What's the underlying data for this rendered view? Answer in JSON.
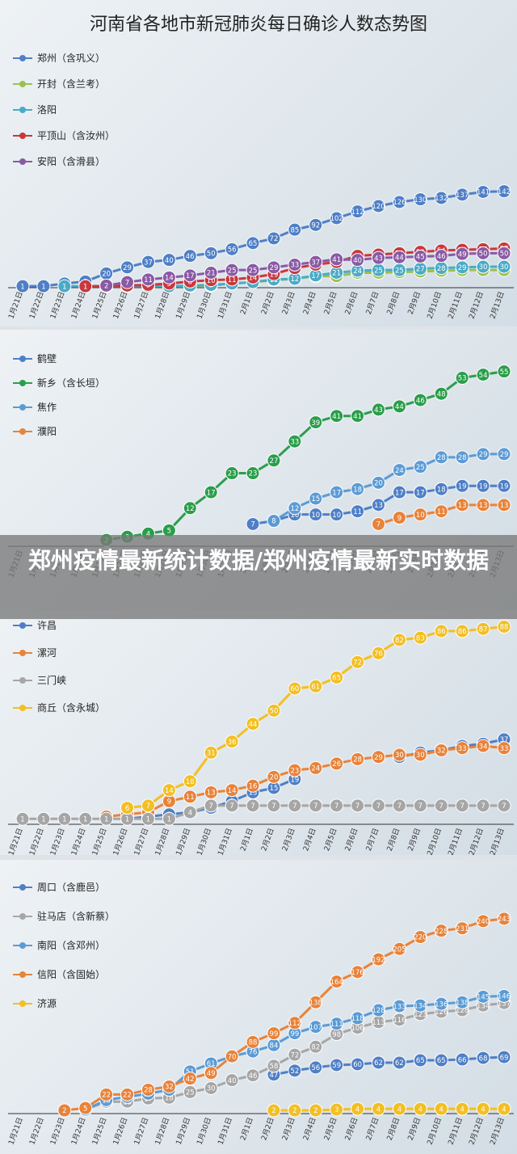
{
  "page_title": "河南省各地市新冠肺炎每日确诊人数态势图",
  "overlay_title": "郑州疫情最新统计数据/郑州疫情最新实时数据",
  "chart_data": [
    {
      "type": "line",
      "x": [
        "1月21日",
        "1月22日",
        "1月23日",
        "1月24日",
        "1月25日",
        "1月26日",
        "1月27日",
        "1月28日",
        "1月29日",
        "1月30日",
        "1月31日",
        "2月1日",
        "2月2日",
        "2月3日",
        "2月4日",
        "2月5日",
        "2月6日",
        "2月7日",
        "2月8日",
        "2月9日",
        "2月10日",
        "2月11日",
        "2月12日",
        "2月13日"
      ],
      "series": [
        {
          "name": "郑州（含巩义）",
          "color": "#4f7fc6",
          "values": [
            1,
            1,
            5,
            8,
            20,
            29,
            37,
            40,
            46,
            50,
            56,
            65,
            72,
            85,
            92,
            102,
            112,
            120,
            126,
            130,
            132,
            137,
            141,
            142
          ]
        },
        {
          "name": "开封（含兰考）",
          "color": "#9cc04e",
          "values": [
            null,
            null,
            null,
            null,
            null,
            null,
            null,
            null,
            1,
            2,
            5,
            7,
            10,
            12,
            16,
            16,
            21,
            21,
            22,
            23,
            24,
            25,
            25,
            25
          ]
        },
        {
          "name": "洛阳",
          "color": "#4aabc7",
          "values": [
            null,
            null,
            1,
            1,
            1,
            1,
            1,
            1,
            2,
            3,
            5,
            7,
            11,
            12,
            17,
            21,
            24,
            25,
            25,
            27,
            28,
            29,
            30,
            30
          ]
        },
        {
          "name": "平顶山（含汝州）",
          "color": "#c8383d",
          "values": [
            null,
            null,
            null,
            1,
            1,
            2,
            3,
            5,
            8,
            10,
            11,
            14,
            19,
            28,
            33,
            37,
            46,
            48,
            50,
            52,
            54,
            55,
            56,
            57
          ]
        },
        {
          "name": "安阳（含滑县）",
          "color": "#8a5aa5",
          "values": [
            null,
            null,
            null,
            null,
            2,
            7,
            11,
            14,
            17,
            21,
            25,
            25,
            29,
            33,
            37,
            41,
            40,
            43,
            44,
            45,
            46,
            49,
            50,
            50
          ]
        }
      ],
      "ylim": [
        0,
        150
      ]
    },
    {
      "type": "line",
      "x": [
        "1月21日",
        "1月22日",
        "1月23日",
        "1月24日",
        "1月25日",
        "1月26日",
        "1月27日",
        "1月28日",
        "1月29日",
        "1月30日",
        "1月31日",
        "2月1日",
        "2月2日",
        "2月3日",
        "2月4日",
        "2月5日",
        "2月6日",
        "2月7日",
        "2月8日",
        "2月9日",
        "2月10日",
        "2月11日",
        "2月12日",
        "2月13日"
      ],
      "series": [
        {
          "name": "鹤壁",
          "color": "#4f7fc6",
          "values": [
            null,
            null,
            null,
            null,
            null,
            null,
            null,
            null,
            null,
            null,
            null,
            7,
            8,
            10,
            10,
            10,
            11,
            13,
            17,
            17,
            18,
            19,
            19,
            19
          ]
        },
        {
          "name": "新乡（含长垣）",
          "color": "#2a9e4b",
          "values": [
            null,
            null,
            null,
            null,
            2,
            3,
            4,
            5,
            12,
            17,
            23,
            23,
            27,
            33,
            39,
            41,
            41,
            43,
            44,
            46,
            48,
            53,
            54,
            55
          ]
        },
        {
          "name": "焦作",
          "color": "#5b9bd5",
          "values": [
            null,
            null,
            null,
            null,
            null,
            null,
            null,
            null,
            null,
            null,
            null,
            null,
            8,
            12,
            15,
            17,
            18,
            20,
            24,
            25,
            28,
            28,
            29,
            29
          ]
        },
        {
          "name": "濮阳",
          "color": "#e8833a",
          "values": [
            null,
            null,
            null,
            null,
            null,
            null,
            null,
            null,
            null,
            null,
            null,
            null,
            null,
            null,
            null,
            null,
            null,
            7,
            9,
            10,
            11,
            13,
            13,
            13
          ]
        }
      ],
      "ylim": [
        0,
        60
      ]
    },
    {
      "type": "line",
      "x": [
        "1月21日",
        "1月22日",
        "1月23日",
        "1月24日",
        "1月25日",
        "1月26日",
        "1月27日",
        "1月28日",
        "1月29日",
        "1月30日",
        "1月31日",
        "2月1日",
        "2月2日",
        "2月3日",
        "2月4日",
        "2月5日",
        "2月6日",
        "2月7日",
        "2月8日",
        "2月9日",
        "2月10日",
        "2月11日",
        "2月12日",
        "2月13日"
      ],
      "series": [
        {
          "name": "许昌",
          "color": "#4f7fc6",
          "values": [
            null,
            null,
            null,
            null,
            null,
            1,
            2,
            3,
            4,
            6,
            9,
            13,
            15,
            19,
            null,
            null,
            null,
            null,
            29,
            31,
            32,
            34,
            35,
            37
          ]
        },
        {
          "name": "漯河",
          "color": "#e8833a",
          "values": [
            null,
            null,
            null,
            null,
            2,
            3,
            4,
            9,
            11,
            13,
            14,
            16,
            20,
            23,
            24,
            26,
            28,
            29,
            30,
            30,
            32,
            33,
            34,
            33
          ]
        },
        {
          "name": "三门峡",
          "color": "#a6a6a6",
          "values": [
            1,
            1,
            1,
            1,
            1,
            1,
            1,
            1,
            4,
            7,
            7,
            7,
            7,
            7,
            7,
            7,
            7,
            7,
            7,
            7,
            7,
            7,
            7,
            7
          ]
        },
        {
          "name": "商丘（含永城）",
          "color": "#f2bf24",
          "values": [
            null,
            null,
            null,
            null,
            null,
            6,
            7,
            14,
            18,
            31,
            36,
            44,
            50,
            60,
            61,
            65,
            72,
            76,
            82,
            83,
            86,
            86,
            87,
            88
          ]
        }
      ],
      "ylim": [
        0,
        90
      ]
    },
    {
      "type": "line",
      "x": [
        "1月21日",
        "1月22日",
        "1月23日",
        "1月24日",
        "1月25日",
        "1月26日",
        "1月27日",
        "1月28日",
        "1月29日",
        "1月30日",
        "1月31日",
        "2月1日",
        "2月2日",
        "2月3日",
        "2月4日",
        "2月5日",
        "2月6日",
        "2月7日",
        "2月8日",
        "2月9日",
        "2月10日",
        "2月11日",
        "2月12日",
        "2月13日"
      ],
      "series": [
        {
          "name": "周口（含鹿邑）",
          "color": "#4f7fc6",
          "values": [
            null,
            null,
            null,
            null,
            null,
            null,
            null,
            null,
            null,
            null,
            null,
            null,
            47,
            52,
            56,
            59,
            60,
            62,
            62,
            65,
            65,
            66,
            68,
            69
          ]
        },
        {
          "name": "驻马店（含新蔡）",
          "color": "#a6a6a6",
          "values": [
            null,
            null,
            null,
            3,
            13,
            13,
            17,
            18,
            25,
            30,
            40,
            46,
            58,
            72,
            82,
            98,
            106,
            113,
            116,
            123,
            126,
            128,
            134,
            137
          ]
        },
        {
          "name": "南阳（含邓州）",
          "color": "#5b9bd5",
          "values": [
            null,
            null,
            null,
            3,
            15,
            19,
            23,
            28,
            51,
            61,
            70,
            76,
            84,
            99,
            107,
            111,
            118,
            128,
            133,
            134,
            136,
            138,
            145,
            146
          ]
        },
        {
          "name": "信阳（含固始）",
          "color": "#e8833a",
          "values": [
            null,
            null,
            2,
            5,
            22,
            22,
            28,
            32,
            42,
            49,
            70,
            88,
            99,
            112,
            138,
            164,
            176,
            192,
            205,
            220,
            228,
            231,
            240,
            243
          ]
        },
        {
          "name": "济源",
          "color": "#f2bf24",
          "values": [
            null,
            null,
            null,
            null,
            null,
            null,
            null,
            null,
            null,
            null,
            null,
            null,
            2,
            2,
            2,
            3,
            4,
            4,
            4,
            4,
            4,
            4,
            4,
            4
          ]
        }
      ],
      "ylim": [
        0,
        250
      ]
    }
  ]
}
